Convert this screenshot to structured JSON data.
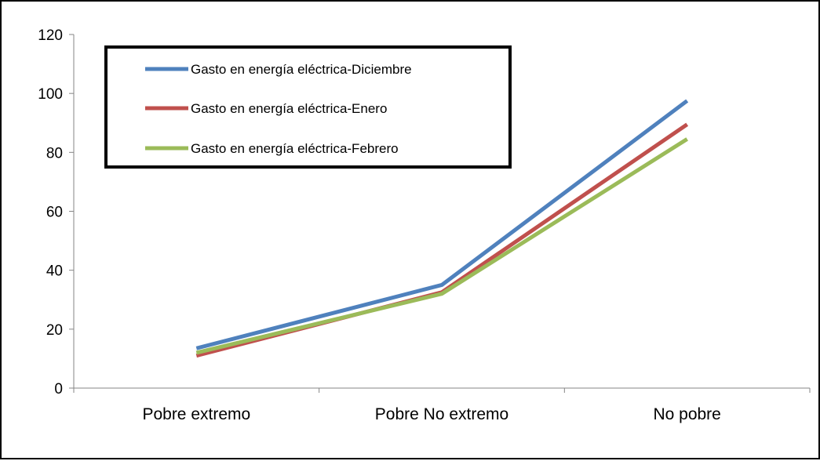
{
  "chart_data": {
    "type": "line",
    "categories": [
      "Pobre extremo",
      "Pobre No extremo",
      "No pobre"
    ],
    "series": [
      {
        "name": "Gasto en energía eléctrica-Diciembre",
        "values": [
          13.5,
          35,
          97.5
        ],
        "color": "#4F81BD"
      },
      {
        "name": "Gasto en energía eléctrica-Enero",
        "values": [
          11,
          32.5,
          89.5
        ],
        "color": "#C0504D"
      },
      {
        "name": "Gasto en energía eléctrica-Febrero",
        "values": [
          12,
          32,
          84.5
        ],
        "color": "#9BBB59"
      }
    ],
    "y_ticks": [
      "0",
      "20",
      "40",
      "60",
      "80",
      "100",
      "120"
    ],
    "ylim": [
      0,
      120
    ],
    "grid": false,
    "legend_position": "top-left"
  }
}
